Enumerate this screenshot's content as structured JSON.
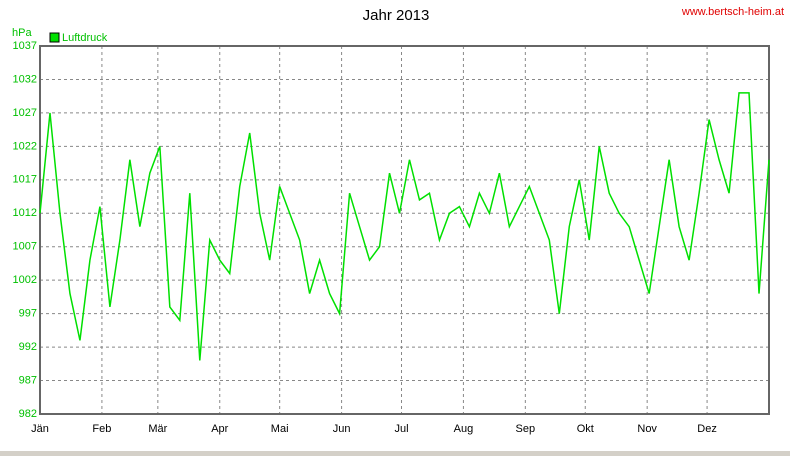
{
  "chart_data": {
    "type": "line",
    "title": "Jahr 2013",
    "y_label": "hPa",
    "source": "www.bertsch-heim.at",
    "x": [
      0,
      5,
      10,
      15,
      20,
      25,
      30,
      35,
      40,
      45,
      50,
      55,
      60,
      65,
      70,
      75,
      80,
      85,
      90,
      95,
      100,
      105,
      110,
      115,
      120,
      125,
      130,
      135,
      140,
      145,
      150,
      155,
      160,
      165,
      170,
      175,
      180,
      185,
      190,
      195,
      200,
      205,
      210,
      215,
      220,
      225,
      230,
      235,
      240,
      245,
      250,
      255,
      260,
      265,
      270,
      275,
      280,
      285,
      290,
      295,
      300,
      305,
      310,
      315,
      320,
      325,
      330,
      335,
      340,
      345,
      350,
      355,
      360,
      365
    ],
    "series": [
      {
        "name": "Luftdruck",
        "color": "#00e000",
        "values": [
          1012,
          1027,
          1012,
          1000,
          993,
          1005,
          1013,
          998,
          1008,
          1020,
          1010,
          1018,
          1022,
          998,
          996,
          1015,
          990,
          1008,
          1005,
          1003,
          1016,
          1024,
          1012,
          1005,
          1016,
          1012,
          1008,
          1000,
          1005,
          1000,
          997,
          1015,
          1010,
          1005,
          1007,
          1018,
          1012,
          1020,
          1014,
          1015,
          1008,
          1012,
          1013,
          1010,
          1015,
          1012,
          1018,
          1010,
          1013,
          1016,
          1012,
          1008,
          997,
          1010,
          1017,
          1008,
          1022,
          1015,
          1012,
          1010,
          1005,
          1000,
          1010,
          1020,
          1010,
          1005,
          1015,
          1026,
          1020,
          1015,
          1030,
          1030,
          1000,
          1020
        ]
      }
    ],
    "xlim": [
      0,
      365
    ],
    "xticks": [
      {
        "value": 0,
        "label": "Jän"
      },
      {
        "value": 31,
        "label": "Feb"
      },
      {
        "value": 59,
        "label": "Mär"
      },
      {
        "value": 90,
        "label": "Apr"
      },
      {
        "value": 120,
        "label": "Mai"
      },
      {
        "value": 151,
        "label": "Jun"
      },
      {
        "value": 181,
        "label": "Jul"
      },
      {
        "value": 212,
        "label": "Aug"
      },
      {
        "value": 243,
        "label": "Sep"
      },
      {
        "value": 273,
        "label": "Okt"
      },
      {
        "value": 304,
        "label": "Nov"
      },
      {
        "value": 334,
        "label": "Dez"
      }
    ],
    "ylim": [
      982,
      1037
    ],
    "yticks": [
      982,
      987,
      992,
      997,
      1002,
      1007,
      1012,
      1017,
      1022,
      1027,
      1032,
      1037
    ],
    "grid": true
  }
}
